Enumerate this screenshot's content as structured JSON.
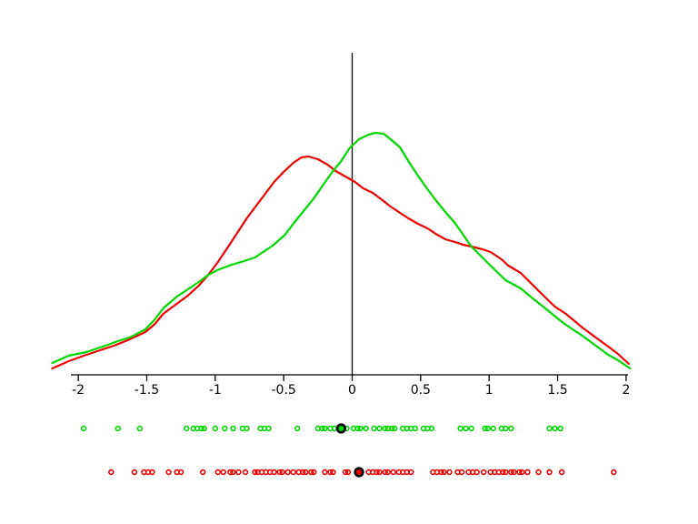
{
  "chart_data": {
    "type": "line",
    "subtype": "kernel-density-with-rug",
    "title": "",
    "xlabel": "",
    "ylabel": "",
    "grid": false,
    "legend": "none",
    "background_color": "#ffffff",
    "axis_color": "#000000",
    "xlim": [
      -2.05,
      2.02
    ],
    "x_ticks": [
      -2,
      -1.5,
      -1,
      -0.5,
      0,
      0.5,
      1,
      1.5,
      2
    ],
    "x_tick_labels": [
      "-2",
      "-1.5",
      "-1",
      "-0.5",
      "0",
      "0.5",
      "1",
      "1.5",
      "2"
    ],
    "y_units": "relative density (arbitrary units, 0-280)",
    "reference_line_x": 0,
    "series": [
      {
        "name": "red-density",
        "color": "#ee0000",
        "points": [
          [
            -2.19,
            7
          ],
          [
            -2.07,
            15
          ],
          [
            -1.94,
            22
          ],
          [
            -1.84,
            27
          ],
          [
            -1.74,
            32
          ],
          [
            -1.64,
            38
          ],
          [
            -1.51,
            47
          ],
          [
            -1.44,
            56
          ],
          [
            -1.38,
            67
          ],
          [
            -1.29,
            77
          ],
          [
            -1.2,
            87
          ],
          [
            -1.12,
            98
          ],
          [
            -1.05,
            110
          ],
          [
            -0.98,
            124
          ],
          [
            -0.9,
            142
          ],
          [
            -0.83,
            158
          ],
          [
            -0.77,
            172
          ],
          [
            -0.7,
            186
          ],
          [
            -0.63,
            200
          ],
          [
            -0.57,
            212
          ],
          [
            -0.5,
            223
          ],
          [
            -0.43,
            233
          ],
          [
            -0.37,
            239
          ],
          [
            -0.32,
            240
          ],
          [
            -0.25,
            237
          ],
          [
            -0.18,
            231
          ],
          [
            -0.12,
            224
          ],
          [
            -0.05,
            218
          ],
          [
            0.02,
            212
          ],
          [
            0.08,
            205
          ],
          [
            0.15,
            200
          ],
          [
            0.22,
            192
          ],
          [
            0.28,
            185
          ],
          [
            0.35,
            178
          ],
          [
            0.41,
            172
          ],
          [
            0.48,
            166
          ],
          [
            0.55,
            161
          ],
          [
            0.61,
            155
          ],
          [
            0.68,
            149
          ],
          [
            0.75,
            146
          ],
          [
            0.81,
            143
          ],
          [
            0.87,
            141
          ],
          [
            0.95,
            138
          ],
          [
            1.01,
            135
          ],
          [
            1.09,
            127
          ],
          [
            1.14,
            120
          ],
          [
            1.23,
            112
          ],
          [
            1.31,
            100
          ],
          [
            1.39,
            88
          ],
          [
            1.48,
            75
          ],
          [
            1.56,
            67
          ],
          [
            1.68,
            52
          ],
          [
            1.77,
            42
          ],
          [
            1.87,
            31
          ],
          [
            1.94,
            23
          ],
          [
            2.02,
            12
          ]
        ]
      },
      {
        "name": "green-density",
        "color": "#00d800",
        "points": [
          [
            -2.19,
            13
          ],
          [
            -2.07,
            21
          ],
          [
            -1.94,
            25
          ],
          [
            -1.84,
            30
          ],
          [
            -1.71,
            37
          ],
          [
            -1.61,
            42
          ],
          [
            -1.51,
            50
          ],
          [
            -1.44,
            61
          ],
          [
            -1.38,
            73
          ],
          [
            -1.28,
            86
          ],
          [
            -1.19,
            95
          ],
          [
            -1.11,
            103
          ],
          [
            -1.05,
            110
          ],
          [
            -0.97,
            116
          ],
          [
            -0.88,
            121
          ],
          [
            -0.79,
            125
          ],
          [
            -0.71,
            129
          ],
          [
            -0.65,
            135
          ],
          [
            -0.58,
            142
          ],
          [
            -0.49,
            154
          ],
          [
            -0.43,
            166
          ],
          [
            -0.36,
            179
          ],
          [
            -0.28,
            194
          ],
          [
            -0.22,
            207
          ],
          [
            -0.15,
            222
          ],
          [
            -0.08,
            235
          ],
          [
            -0.02,
            249
          ],
          [
            0.05,
            259
          ],
          [
            0.12,
            264
          ],
          [
            0.17,
            266
          ],
          [
            0.23,
            265
          ],
          [
            0.28,
            259
          ],
          [
            0.35,
            250
          ],
          [
            0.41,
            235
          ],
          [
            0.48,
            219
          ],
          [
            0.55,
            204
          ],
          [
            0.61,
            192
          ],
          [
            0.68,
            179
          ],
          [
            0.75,
            167
          ],
          [
            0.81,
            154
          ],
          [
            0.87,
            141
          ],
          [
            0.95,
            129
          ],
          [
            1.01,
            120
          ],
          [
            1.12,
            104
          ],
          [
            1.23,
            95
          ],
          [
            1.31,
            85
          ],
          [
            1.41,
            73
          ],
          [
            1.5,
            62
          ],
          [
            1.56,
            55
          ],
          [
            1.68,
            43
          ],
          [
            1.77,
            33
          ],
          [
            1.87,
            22
          ],
          [
            1.94,
            16
          ],
          [
            2.03,
            7
          ]
        ]
      }
    ],
    "rugs": [
      {
        "name": "green-samples",
        "color": "#00d800",
        "row": 1,
        "values": [
          -1.96,
          -1.71,
          -1.55,
          -1.21,
          -1.16,
          -1.13,
          -1.1,
          -1.08,
          -1.0,
          -0.93,
          -0.87,
          -0.8,
          -0.77,
          -0.67,
          -0.64,
          -0.61,
          -0.4,
          -0.25,
          -0.22,
          -0.2,
          -0.16,
          -0.13,
          -0.08,
          -0.04,
          0.01,
          0.04,
          0.06,
          0.1,
          0.16,
          0.2,
          0.24,
          0.26,
          0.29,
          0.31,
          0.37,
          0.4,
          0.43,
          0.46,
          0.52,
          0.55,
          0.58,
          0.79,
          0.83,
          0.87,
          0.97,
          0.99,
          1.03,
          1.09,
          1.12,
          1.16,
          1.44,
          1.48,
          1.52
        ],
        "highlighted_value": -0.08
      },
      {
        "name": "red-samples",
        "color": "#ee0000",
        "row": 2,
        "values": [
          -1.76,
          -1.59,
          -1.52,
          -1.49,
          -1.46,
          -1.34,
          -1.28,
          -1.25,
          -1.09,
          -0.98,
          -0.94,
          -0.89,
          -0.87,
          -0.83,
          -0.78,
          -0.71,
          -0.69,
          -0.66,
          -0.63,
          -0.6,
          -0.57,
          -0.53,
          -0.51,
          -0.47,
          -0.43,
          -0.39,
          -0.36,
          -0.34,
          -0.3,
          -0.28,
          -0.2,
          -0.16,
          -0.14,
          -0.05,
          -0.03,
          0.05,
          0.12,
          0.15,
          0.18,
          0.2,
          0.24,
          0.26,
          0.3,
          0.34,
          0.37,
          0.4,
          0.43,
          0.59,
          0.62,
          0.65,
          0.67,
          0.71,
          0.77,
          0.8,
          0.85,
          0.88,
          0.91,
          0.96,
          1.01,
          1.04,
          1.07,
          1.1,
          1.12,
          1.16,
          1.18,
          1.22,
          1.24,
          1.28,
          1.36,
          1.44,
          1.53,
          1.91
        ],
        "highlighted_value": 0.05
      }
    ],
    "highlight_marker_color": "#000000"
  }
}
